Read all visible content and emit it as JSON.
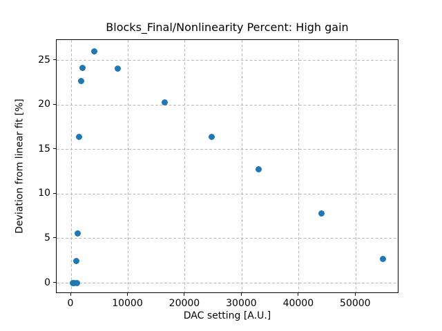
{
  "chart_data": {
    "type": "scatter",
    "title": "Blocks_Final/Nonlinearity Percent: High gain",
    "xlabel": "DAC setting [A.U.]",
    "ylabel": "Deviation from linear fit [%]",
    "xlim": [
      -2550,
      57600
    ],
    "ylim": [
      -1.2,
      27.3
    ],
    "x_ticks": [
      0,
      10000,
      20000,
      30000,
      40000,
      50000
    ],
    "x_tick_labels": [
      "0",
      "10000",
      "20000",
      "30000",
      "40000",
      "50000"
    ],
    "y_ticks": [
      0,
      5,
      10,
      15,
      20,
      25
    ],
    "y_tick_labels": [
      "0",
      "5",
      "10",
      "15",
      "20",
      "25"
    ],
    "grid": true,
    "grid_style": "dashed",
    "legend": "none",
    "marker_color": "#1f77b4",
    "grid_color": "#b9b9b9",
    "series": [
      {
        "name": "nonlinearity",
        "points": [
          {
            "x": 250,
            "y": 0.0
          },
          {
            "x": 600,
            "y": 0.0
          },
          {
            "x": 1000,
            "y": 0.0
          },
          {
            "x": 950,
            "y": 2.5
          },
          {
            "x": 1100,
            "y": 5.6
          },
          {
            "x": 1400,
            "y": 16.4
          },
          {
            "x": 1750,
            "y": 22.7
          },
          {
            "x": 2000,
            "y": 24.2
          },
          {
            "x": 4000,
            "y": 26.0
          },
          {
            "x": 8200,
            "y": 24.1
          },
          {
            "x": 16400,
            "y": 20.3
          },
          {
            "x": 24700,
            "y": 16.4
          },
          {
            "x": 32900,
            "y": 12.8
          },
          {
            "x": 44000,
            "y": 7.8
          },
          {
            "x": 54700,
            "y": 2.7
          }
        ]
      }
    ]
  }
}
